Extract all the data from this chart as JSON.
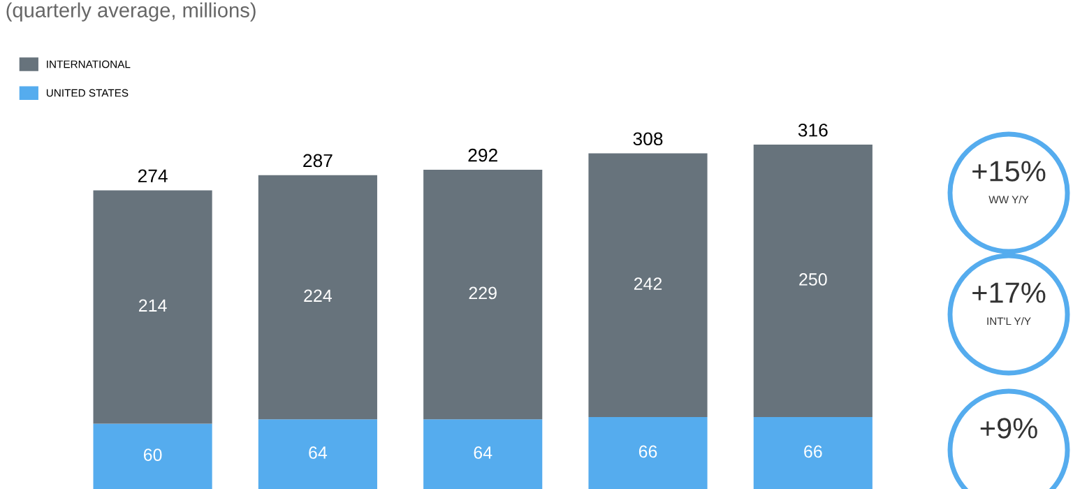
{
  "chart_data": {
    "type": "bar",
    "subtitle": "(quarterly average, millions)",
    "categories": [
      null,
      null,
      null,
      null,
      null
    ],
    "stacked": true,
    "series": [
      {
        "name": "UNITED STATES",
        "color": "#55acee",
        "values": [
          60,
          64,
          64,
          66,
          66
        ]
      },
      {
        "name": "INTERNATIONAL",
        "color": "#67737c",
        "values": [
          214,
          224,
          229,
          242,
          250
        ]
      }
    ],
    "data_labels": true,
    "totals": [
      "274",
      "287",
      "292",
      "308",
      "316"
    ],
    "legend": "top left",
    "annotations": [
      "+15%",
      "WW Y/Y",
      "+17%",
      "INT'L Y/Y",
      "+9%"
    ]
  }
}
